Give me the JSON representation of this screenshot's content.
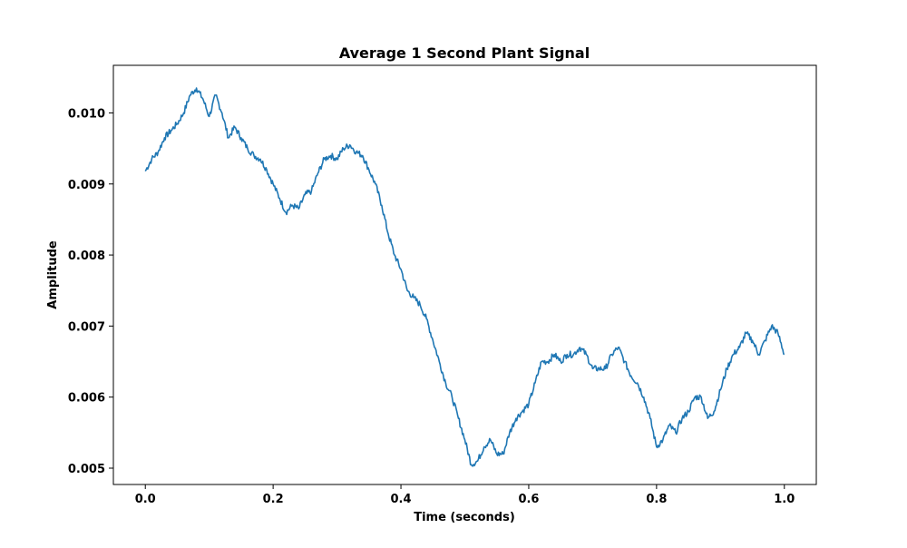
{
  "chart_data": {
    "type": "line",
    "title": "Average 1 Second Plant Signal",
    "xlabel": "Time (seconds)",
    "ylabel": "Amplitude",
    "xlim": [
      -0.05,
      1.05
    ],
    "ylim": [
      0.00477,
      0.01067
    ],
    "x_ticks": [
      0.0,
      0.2,
      0.4,
      0.6,
      0.8,
      1.0
    ],
    "x_tick_labels": [
      "0.0",
      "0.2",
      "0.4",
      "0.6",
      "0.8",
      "1.0"
    ],
    "y_ticks": [
      0.005,
      0.006,
      0.007,
      0.008,
      0.009,
      0.01
    ],
    "y_tick_labels": [
      "0.005",
      "0.006",
      "0.007",
      "0.008",
      "0.009",
      "0.010"
    ],
    "grid": false,
    "legend": "none",
    "series": [
      {
        "color": "#1f77b4",
        "x": [
          0.0,
          0.01,
          0.02,
          0.03,
          0.04,
          0.05,
          0.06,
          0.07,
          0.08,
          0.09,
          0.1,
          0.11,
          0.12,
          0.13,
          0.14,
          0.15,
          0.16,
          0.17,
          0.18,
          0.19,
          0.2,
          0.21,
          0.22,
          0.23,
          0.24,
          0.25,
          0.26,
          0.27,
          0.28,
          0.29,
          0.3,
          0.31,
          0.32,
          0.33,
          0.34,
          0.35,
          0.36,
          0.37,
          0.38,
          0.39,
          0.4,
          0.41,
          0.42,
          0.43,
          0.44,
          0.45,
          0.46,
          0.47,
          0.48,
          0.49,
          0.5,
          0.51,
          0.52,
          0.53,
          0.54,
          0.55,
          0.56,
          0.57,
          0.58,
          0.59,
          0.6,
          0.61,
          0.62,
          0.63,
          0.64,
          0.65,
          0.66,
          0.67,
          0.68,
          0.69,
          0.7,
          0.71,
          0.72,
          0.73,
          0.74,
          0.75,
          0.76,
          0.77,
          0.78,
          0.79,
          0.8,
          0.81,
          0.82,
          0.83,
          0.84,
          0.85,
          0.86,
          0.87,
          0.88,
          0.89,
          0.9,
          0.91,
          0.92,
          0.93,
          0.94,
          0.95,
          0.96,
          0.97,
          0.98,
          0.99,
          1.0
        ],
        "y": [
          0.00918,
          0.00935,
          0.00945,
          0.00965,
          0.00975,
          0.00985,
          0.01,
          0.01025,
          0.01035,
          0.0102,
          0.00995,
          0.01025,
          0.01,
          0.00965,
          0.0098,
          0.00965,
          0.0095,
          0.0094,
          0.00935,
          0.0092,
          0.009,
          0.0088,
          0.0086,
          0.0087,
          0.00865,
          0.00885,
          0.0089,
          0.00915,
          0.00935,
          0.0094,
          0.00935,
          0.0095,
          0.00955,
          0.00945,
          0.0094,
          0.0092,
          0.009,
          0.0087,
          0.0083,
          0.008,
          0.0078,
          0.0075,
          0.0074,
          0.0073,
          0.0071,
          0.0068,
          0.0065,
          0.0062,
          0.006,
          0.0057,
          0.0054,
          0.00505,
          0.0051,
          0.0053,
          0.0054,
          0.0052,
          0.0052,
          0.0055,
          0.0057,
          0.0058,
          0.0059,
          0.0062,
          0.0065,
          0.0065,
          0.0066,
          0.0065,
          0.0066,
          0.0066,
          0.0067,
          0.0066,
          0.0064,
          0.0064,
          0.0064,
          0.0066,
          0.0067,
          0.0065,
          0.0063,
          0.0062,
          0.006,
          0.0057,
          0.0053,
          0.0054,
          0.0056,
          0.0055,
          0.0057,
          0.0058,
          0.006,
          0.006,
          0.0057,
          0.0058,
          0.0061,
          0.0064,
          0.0066,
          0.0067,
          0.0069,
          0.0068,
          0.0066,
          0.0068,
          0.007,
          0.0069,
          0.0066
        ]
      }
    ]
  }
}
